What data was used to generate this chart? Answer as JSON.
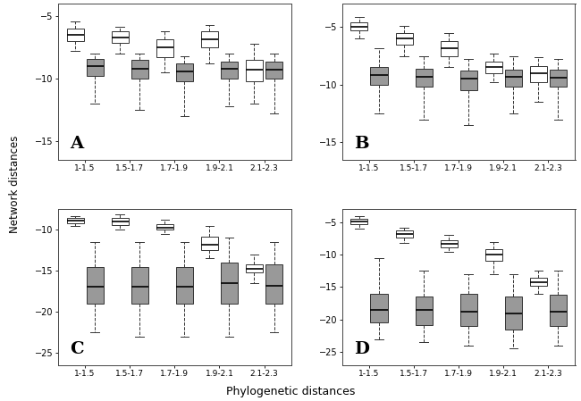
{
  "panels": [
    "A",
    "B",
    "C",
    "D"
  ],
  "categories": [
    "1-1.5",
    "1.5-1.7",
    "1.7-1.9",
    "1.9-2.1",
    "2.1-2.3"
  ],
  "ylabel": "Network distances",
  "xlabel": "Phylogenetic distances",
  "panel_data": {
    "A": {
      "ylim": [
        -16.5,
        -4.0
      ],
      "yticks": [
        -15,
        -10,
        -5
      ],
      "white_boxes": [
        {
          "whislo": -7.8,
          "q1": -7.0,
          "med": -6.5,
          "q3": -6.0,
          "whishi": -5.4
        },
        {
          "whislo": -8.0,
          "q1": -7.1,
          "med": -6.7,
          "q3": -6.2,
          "whishi": -5.8
        },
        {
          "whislo": -9.5,
          "q1": -8.3,
          "med": -7.5,
          "q3": -6.8,
          "whishi": -6.2
        },
        {
          "whislo": -8.8,
          "q1": -7.5,
          "med": -6.8,
          "q3": -6.2,
          "whishi": -5.7
        },
        {
          "whislo": -12.0,
          "q1": -10.2,
          "med": -9.3,
          "q3": -8.5,
          "whishi": -7.2
        }
      ],
      "gray_boxes": [
        {
          "whislo": -12.0,
          "q1": -9.8,
          "med": -9.0,
          "q3": -8.4,
          "whishi": -8.0
        },
        {
          "whislo": -12.5,
          "q1": -10.0,
          "med": -9.2,
          "q3": -8.5,
          "whishi": -8.0
        },
        {
          "whislo": -13.0,
          "q1": -10.2,
          "med": -9.4,
          "q3": -8.8,
          "whishi": -8.2
        },
        {
          "whislo": -12.2,
          "q1": -10.0,
          "med": -9.2,
          "q3": -8.6,
          "whishi": -8.0
        },
        {
          "whislo": -12.8,
          "q1": -10.0,
          "med": -9.3,
          "q3": -8.6,
          "whishi": -8.0
        }
      ]
    },
    "B": {
      "ylim": [
        -16.5,
        -3.0
      ],
      "yticks": [
        -15,
        -10,
        -5
      ],
      "white_boxes": [
        {
          "whislo": -6.0,
          "q1": -5.3,
          "med": -5.0,
          "q3": -4.6,
          "whishi": -4.1
        },
        {
          "whislo": -7.5,
          "q1": -6.5,
          "med": -6.0,
          "q3": -5.5,
          "whishi": -4.9
        },
        {
          "whislo": -8.5,
          "q1": -7.5,
          "med": -6.8,
          "q3": -6.2,
          "whishi": -5.5
        },
        {
          "whislo": -9.8,
          "q1": -9.0,
          "med": -8.5,
          "q3": -8.0,
          "whishi": -7.3
        },
        {
          "whislo": -11.5,
          "q1": -9.8,
          "med": -9.0,
          "q3": -8.4,
          "whishi": -7.6
        }
      ],
      "gray_boxes": [
        {
          "whislo": -12.5,
          "q1": -10.0,
          "med": -9.2,
          "q3": -8.5,
          "whishi": -6.8
        },
        {
          "whislo": -13.0,
          "q1": -10.2,
          "med": -9.3,
          "q3": -8.6,
          "whishi": -7.5
        },
        {
          "whislo": -13.5,
          "q1": -10.5,
          "med": -9.5,
          "q3": -8.8,
          "whishi": -7.8
        },
        {
          "whislo": -12.5,
          "q1": -10.2,
          "med": -9.3,
          "q3": -8.7,
          "whishi": -7.5
        },
        {
          "whislo": -13.0,
          "q1": -10.2,
          "med": -9.4,
          "q3": -8.7,
          "whishi": -7.8
        }
      ]
    },
    "C": {
      "ylim": [
        -26.5,
        -7.5
      ],
      "yticks": [
        -25,
        -20,
        -15,
        -10
      ],
      "white_boxes": [
        {
          "whislo": -9.5,
          "q1": -9.2,
          "med": -8.9,
          "q3": -8.6,
          "whishi": -8.3
        },
        {
          "whislo": -10.0,
          "q1": -9.4,
          "med": -9.0,
          "q3": -8.6,
          "whishi": -8.1
        },
        {
          "whislo": -10.5,
          "q1": -10.0,
          "med": -9.7,
          "q3": -9.3,
          "whishi": -8.8
        },
        {
          "whislo": -13.5,
          "q1": -12.5,
          "med": -11.8,
          "q3": -10.8,
          "whishi": -9.5
        },
        {
          "whislo": -16.5,
          "q1": -15.2,
          "med": -14.8,
          "q3": -14.2,
          "whishi": -13.0
        }
      ],
      "gray_boxes": [
        {
          "whislo": -22.5,
          "q1": -19.0,
          "med": -17.0,
          "q3": -14.5,
          "whishi": -11.5
        },
        {
          "whislo": -23.0,
          "q1": -19.0,
          "med": -17.0,
          "q3": -14.5,
          "whishi": -11.5
        },
        {
          "whislo": -23.0,
          "q1": -19.0,
          "med": -17.0,
          "q3": -14.5,
          "whishi": -11.5
        },
        {
          "whislo": -23.0,
          "q1": -19.0,
          "med": -16.5,
          "q3": -14.0,
          "whishi": -11.0
        },
        {
          "whislo": -22.5,
          "q1": -19.0,
          "med": -16.8,
          "q3": -14.2,
          "whishi": -11.5
        }
      ]
    },
    "D": {
      "ylim": [
        -27.0,
        -3.0
      ],
      "yticks": [
        -25,
        -20,
        -15,
        -10,
        -5
      ],
      "white_boxes": [
        {
          "whislo": -6.0,
          "q1": -5.3,
          "med": -4.9,
          "q3": -4.5,
          "whishi": -4.1
        },
        {
          "whislo": -8.2,
          "q1": -7.3,
          "med": -6.8,
          "q3": -6.3,
          "whishi": -5.8
        },
        {
          "whislo": -9.5,
          "q1": -8.8,
          "med": -8.3,
          "q3": -7.8,
          "whishi": -7.0
        },
        {
          "whislo": -13.0,
          "q1": -11.0,
          "med": -10.0,
          "q3": -9.2,
          "whishi": -8.0
        },
        {
          "whislo": -16.0,
          "q1": -14.8,
          "med": -14.2,
          "q3": -13.6,
          "whishi": -12.5
        }
      ],
      "gray_boxes": [
        {
          "whislo": -23.0,
          "q1": -20.5,
          "med": -18.5,
          "q3": -16.0,
          "whishi": -10.5
        },
        {
          "whislo": -23.5,
          "q1": -20.8,
          "med": -18.5,
          "q3": -16.5,
          "whishi": -12.5
        },
        {
          "whislo": -24.0,
          "q1": -21.0,
          "med": -18.8,
          "q3": -16.0,
          "whishi": -13.0
        },
        {
          "whislo": -24.5,
          "q1": -21.5,
          "med": -19.0,
          "q3": -16.5,
          "whishi": -13.0
        },
        {
          "whislo": -24.0,
          "q1": -21.0,
          "med": -18.8,
          "q3": -16.2,
          "whishi": -12.5
        }
      ]
    }
  },
  "white_color": "#ffffff",
  "gray_color": "#999999",
  "linecolor": "#333333",
  "median_color": "#000000"
}
